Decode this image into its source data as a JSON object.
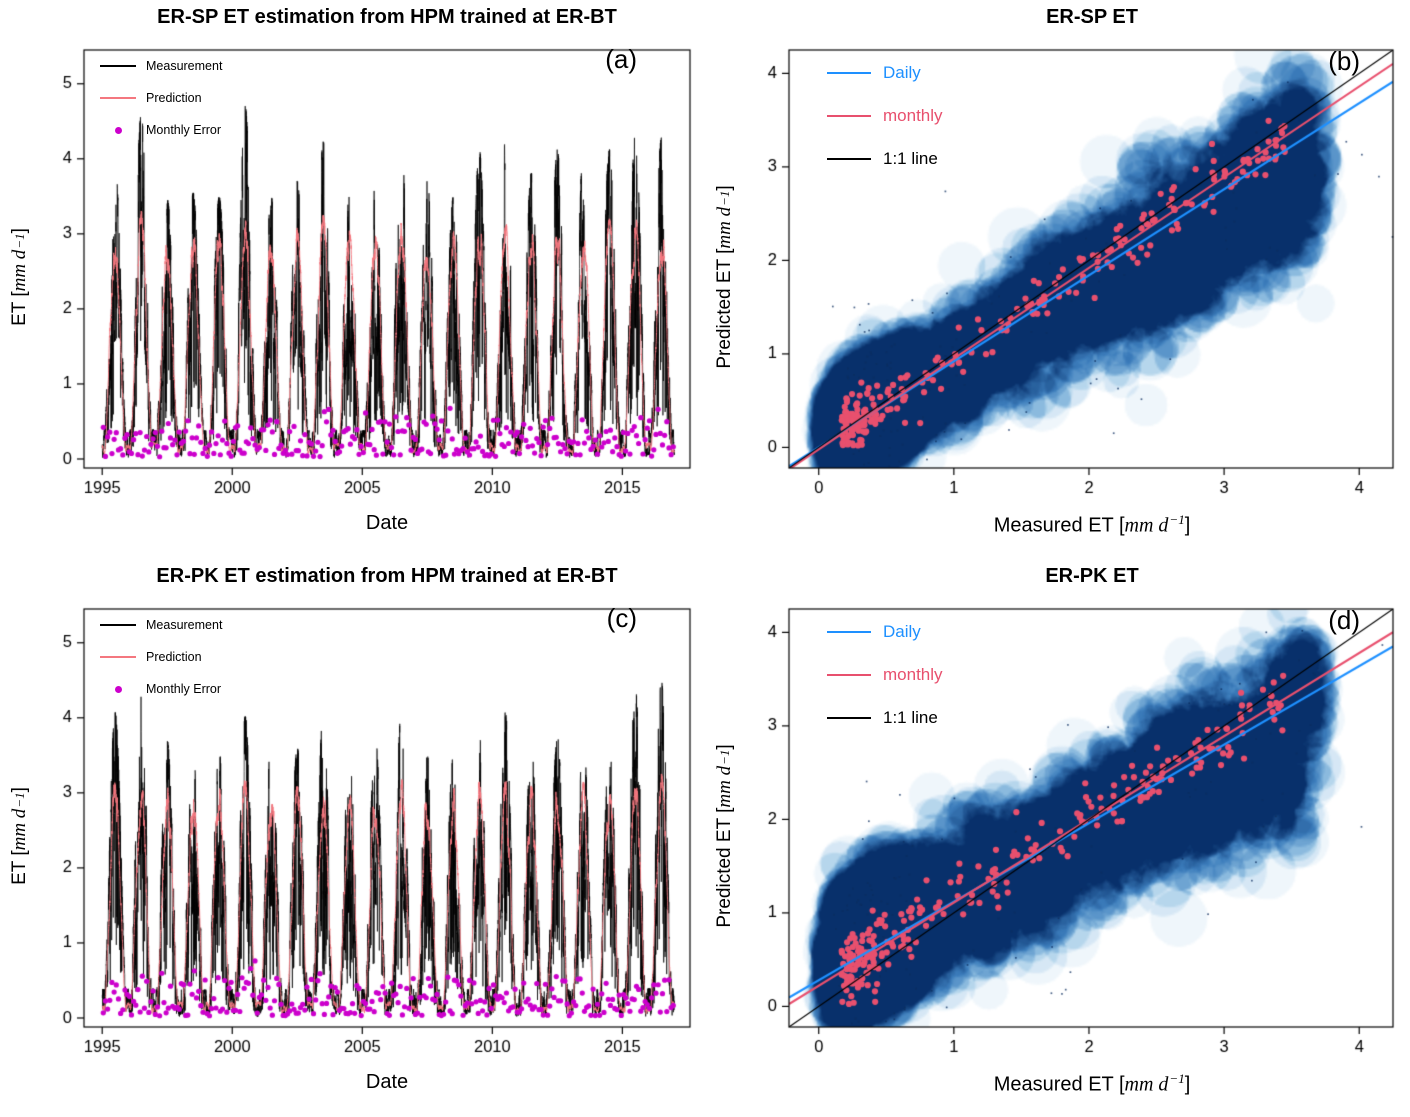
{
  "chart_data": [
    {
      "panel_label": "(a)",
      "type": "line",
      "title": "ER-SP ET estimation from HPM trained at ER-BT",
      "xlabel": "Date",
      "ylabel": "ET [mm d^-1]",
      "ylabel_parts": {
        "prefix": "ET [",
        "math": "mm d",
        "sup": "−1",
        "suffix": "]"
      },
      "xlim": [
        1994.3,
        2017.6
      ],
      "ylim": [
        -0.12,
        5.45
      ],
      "xticks": [
        1995,
        2000,
        2005,
        2010,
        2015
      ],
      "yticks": [
        0,
        1,
        2,
        3,
        4,
        5
      ],
      "grid": false,
      "legend_position": "top-left",
      "legend": [
        {
          "label": "Measurement",
          "color": "#000000",
          "marker": "line"
        },
        {
          "label": "Prediction",
          "color": "#f4777f",
          "marker": "line"
        },
        {
          "label": "Monthly Error",
          "color": "#cc00cc",
          "marker": "point"
        }
      ],
      "x_years": [
        1995,
        1996,
        1997,
        1998,
        1999,
        2000,
        2001,
        2002,
        2003,
        2004,
        2005,
        2006,
        2007,
        2008,
        2009,
        2010,
        2011,
        2012,
        2013,
        2014,
        2015,
        2016
      ],
      "series": [
        {
          "name": "Measurement",
          "kind": "daily-line",
          "color": "#000000",
          "annual_peak_ET": [
            3.7,
            4.35,
            3.3,
            3.35,
            3.3,
            4.45,
            3.3,
            3.5,
            4.0,
            3.3,
            3.45,
            4.0,
            3.5,
            3.3,
            3.9,
            4.0,
            3.6,
            3.9,
            3.85,
            3.9,
            4.1,
            4.05
          ]
        },
        {
          "name": "Prediction",
          "kind": "daily-line",
          "color": "#f4777f",
          "annual_peak_ET": [
            3.0,
            3.1,
            2.9,
            2.95,
            2.9,
            3.1,
            2.85,
            2.9,
            3.05,
            2.85,
            2.9,
            3.0,
            2.9,
            2.85,
            3.0,
            3.0,
            2.9,
            3.0,
            3.0,
            3.0,
            3.05,
            3.0
          ]
        },
        {
          "name": "Monthly Error",
          "kind": "points",
          "color": "#cc00cc",
          "value_range": [
            0,
            0.9
          ],
          "typical_range": [
            0.05,
            0.5
          ]
        }
      ],
      "seasonality": {
        "winter_min_ET": 0.05,
        "peak_season": "summer"
      }
    },
    {
      "panel_label": "(b)",
      "type": "scatter",
      "title": "ER-SP ET",
      "xlabel_parts": {
        "prefix": "Measured ET [",
        "math": "mm d",
        "sup": "−1",
        "suffix": "]"
      },
      "ylabel_parts": {
        "prefix": "Predicted ET [",
        "math": "mm d",
        "sup": "−1",
        "suffix": "]"
      },
      "xlim": [
        -0.22,
        4.25
      ],
      "ylim": [
        -0.22,
        4.25
      ],
      "xticks": [
        0,
        1,
        2,
        3,
        4
      ],
      "yticks": [
        0,
        1,
        2,
        3,
        4
      ],
      "legend_position": "top-left",
      "fit_lines": [
        {
          "name": "Daily",
          "color": "#1e90ff",
          "slope": 0.92,
          "intercept": 0.0
        },
        {
          "name": "monthly",
          "color": "#e8506e",
          "slope": 0.97,
          "intercept": -0.02
        },
        {
          "name": "1:1 line",
          "color": "#000000",
          "slope": 1,
          "intercept": 0
        }
      ],
      "daily_density": {
        "description": "kernel density cloud of daily measured vs predicted ET",
        "color_scale": [
          "#ffffff",
          "#96c4e4",
          "#08306b"
        ],
        "core_xy": [
          0.35,
          0.3
        ],
        "trend_intercept": 0.02,
        "trend_slope": 0.8,
        "sd_base": 0.17,
        "sd_slope": 0.1,
        "up_skew": 0.35
      },
      "monthly_points": {
        "count": 264,
        "color": "#e8506e",
        "trend_intercept": -0.02,
        "trend_slope": 0.97,
        "scatter_sd": 0.16
      }
    },
    {
      "panel_label": "(c)",
      "type": "line",
      "title": "ER-PK ET estimation from HPM trained at ER-BT",
      "xlabel": "Date",
      "ylabel": "ET [mm d^-1]",
      "ylabel_parts": {
        "prefix": "ET [",
        "math": "mm d",
        "sup": "−1",
        "suffix": "]"
      },
      "xlim": [
        1994.3,
        2017.6
      ],
      "ylim": [
        -0.12,
        5.45
      ],
      "xticks": [
        1995,
        2000,
        2005,
        2010,
        2015
      ],
      "yticks": [
        0,
        1,
        2,
        3,
        4,
        5
      ],
      "grid": false,
      "legend_position": "top-left",
      "legend": [
        {
          "label": "Measurement",
          "color": "#000000",
          "marker": "line"
        },
        {
          "label": "Prediction",
          "color": "#f4777f",
          "marker": "line"
        },
        {
          "label": "Monthly Error",
          "color": "#cc00cc",
          "marker": "point"
        }
      ],
      "x_years": [
        1995,
        1996,
        1997,
        1998,
        1999,
        2000,
        2001,
        2002,
        2003,
        2004,
        2005,
        2006,
        2007,
        2008,
        2009,
        2010,
        2011,
        2012,
        2013,
        2014,
        2015,
        2016
      ],
      "series": [
        {
          "name": "Measurement",
          "kind": "daily-line",
          "color": "#000000",
          "annual_peak_ET": [
            3.85,
            4.05,
            3.5,
            3.3,
            3.35,
            3.8,
            3.5,
            3.4,
            3.85,
            3.3,
            3.55,
            3.85,
            3.3,
            3.3,
            3.55,
            3.85,
            3.4,
            3.55,
            3.5,
            3.4,
            4.15,
            4.25
          ]
        },
        {
          "name": "Prediction",
          "kind": "daily-line",
          "color": "#f4777f",
          "annual_peak_ET": [
            3.0,
            3.05,
            2.95,
            2.9,
            2.9,
            3.0,
            2.95,
            2.9,
            3.0,
            2.85,
            2.95,
            3.0,
            2.9,
            2.9,
            2.95,
            3.0,
            2.9,
            2.95,
            2.95,
            2.9,
            3.05,
            3.05
          ]
        },
        {
          "name": "Monthly Error",
          "kind": "points",
          "color": "#cc00cc",
          "value_range": [
            0,
            1.0
          ],
          "typical_range": [
            0.05,
            0.5
          ]
        }
      ],
      "seasonality": {
        "winter_min_ET": 0.05,
        "peak_season": "summer"
      }
    },
    {
      "panel_label": "(d)",
      "type": "scatter",
      "title": "ER-PK ET",
      "xlabel_parts": {
        "prefix": "Measured ET [",
        "math": "mm d",
        "sup": "−1",
        "suffix": "]"
      },
      "ylabel_parts": {
        "prefix": "Predicted ET [",
        "math": "mm d",
        "sup": "−1",
        "suffix": "]"
      },
      "xlim": [
        -0.22,
        4.25
      ],
      "ylim": [
        -0.22,
        4.25
      ],
      "xticks": [
        0,
        1,
        2,
        3,
        4
      ],
      "yticks": [
        0,
        1,
        2,
        3,
        4
      ],
      "legend_position": "top-left",
      "fit_lines": [
        {
          "name": "Daily",
          "color": "#1e90ff",
          "slope": 0.84,
          "intercept": 0.28
        },
        {
          "name": "monthly",
          "color": "#e8506e",
          "slope": 0.89,
          "intercept": 0.22
        },
        {
          "name": "1:1 line",
          "color": "#000000",
          "slope": 1,
          "intercept": 0
        }
      ],
      "daily_density": {
        "description": "kernel density cloud of daily measured vs predicted ET",
        "color_scale": [
          "#ffffff",
          "#96c4e4",
          "#08306b"
        ],
        "core_xy": [
          0.3,
          0.45
        ],
        "trend_intercept": 0.3,
        "trend_slope": 0.75,
        "sd_base": 0.25,
        "sd_slope": 0.08,
        "up_skew": 0.5
      },
      "monthly_points": {
        "count": 264,
        "color": "#e8506e",
        "trend_intercept": 0.22,
        "trend_slope": 0.89,
        "scatter_sd": 0.18
      }
    }
  ]
}
